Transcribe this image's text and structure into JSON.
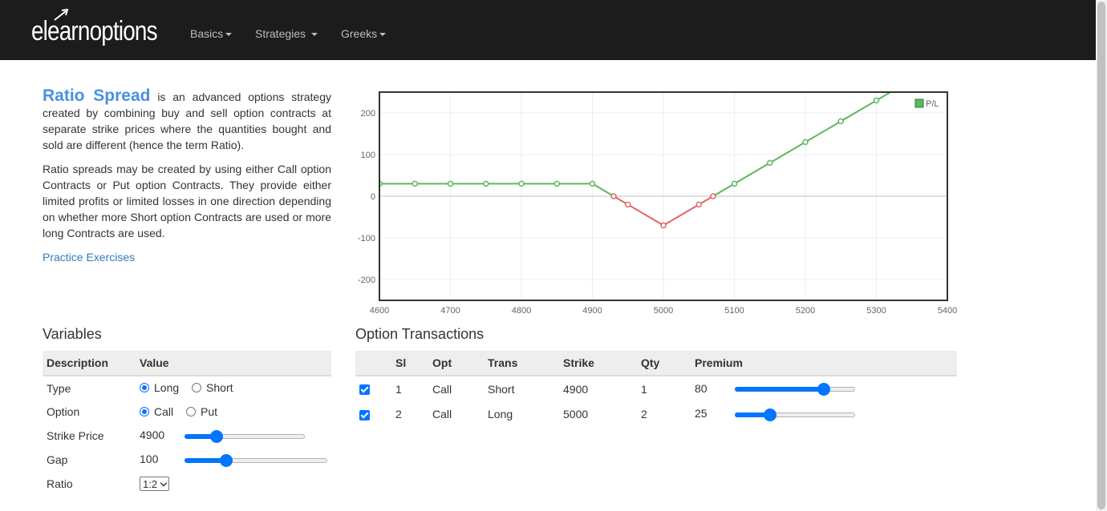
{
  "navbar": {
    "brand": "elearnoptions",
    "items": [
      {
        "label": "Basics"
      },
      {
        "label": "Strategies"
      },
      {
        "label": "Greeks"
      }
    ]
  },
  "intro": {
    "term": "Ratio Spread",
    "p1_rest": " is an advanced options strategy created by combining buy and sell option contracts at separate strike prices where the quantities bought and sold are different (hence the term Ratio).",
    "p2": "Ratio spreads may be created by using either Call option Contracts or Put option Contracts. They provide either limited profits or limited losses in one direction depending on whether more Short option Contracts are used or more long Contracts are used.",
    "practice_link": "Practice Exercises"
  },
  "chart_data": {
    "type": "line",
    "series": [
      {
        "name": "P/L",
        "x": [
          4600,
          4650,
          4700,
          4750,
          4800,
          4850,
          4900,
          4930,
          4950,
          5000,
          5050,
          5070,
          5100,
          5150,
          5200,
          5250,
          5300
        ],
        "values": [
          30,
          30,
          30,
          30,
          30,
          30,
          30,
          0,
          -20,
          -70,
          -20,
          0,
          30,
          80,
          130,
          180,
          230
        ]
      }
    ],
    "xlim": [
      4600,
      5400
    ],
    "ylim": [
      -250,
      250
    ],
    "xticks": [
      4600,
      4700,
      4800,
      4900,
      5000,
      5100,
      5200,
      5300,
      5400
    ],
    "yticks": [
      200,
      100,
      0,
      -100,
      -200
    ],
    "legend": "top-right",
    "grid": true,
    "profit_color": "#5cb85c",
    "loss_color": "#e06666"
  },
  "variables": {
    "title": "Variables",
    "headers": {
      "description": "Description",
      "value": "Value"
    },
    "type_label": "Type",
    "type_options": [
      "Long",
      "Short"
    ],
    "type_selected": "Long",
    "option_label": "Option",
    "option_options": [
      "Call",
      "Put"
    ],
    "option_selected": "Call",
    "strike_label": "Strike Price",
    "strike_value": "4900",
    "strike_slider_fraction": 0.24,
    "gap_label": "Gap",
    "gap_value": "100",
    "gap_slider_fraction": 0.27,
    "ratio_label": "Ratio",
    "ratio_value": "1:2"
  },
  "transactions": {
    "title": "Option Transactions",
    "headers": [
      "Sl",
      "Opt",
      "Trans",
      "Strike",
      "Qty",
      "Premium"
    ],
    "rows": [
      {
        "checked": true,
        "sl": "1",
        "opt": "Call",
        "trans": "Short",
        "strike": "4900",
        "qty": "1",
        "premium": "80",
        "slider_fraction": 0.77
      },
      {
        "checked": true,
        "sl": "2",
        "opt": "Call",
        "trans": "Long",
        "strike": "5000",
        "qty": "2",
        "premium": "25",
        "slider_fraction": 0.27
      }
    ]
  }
}
